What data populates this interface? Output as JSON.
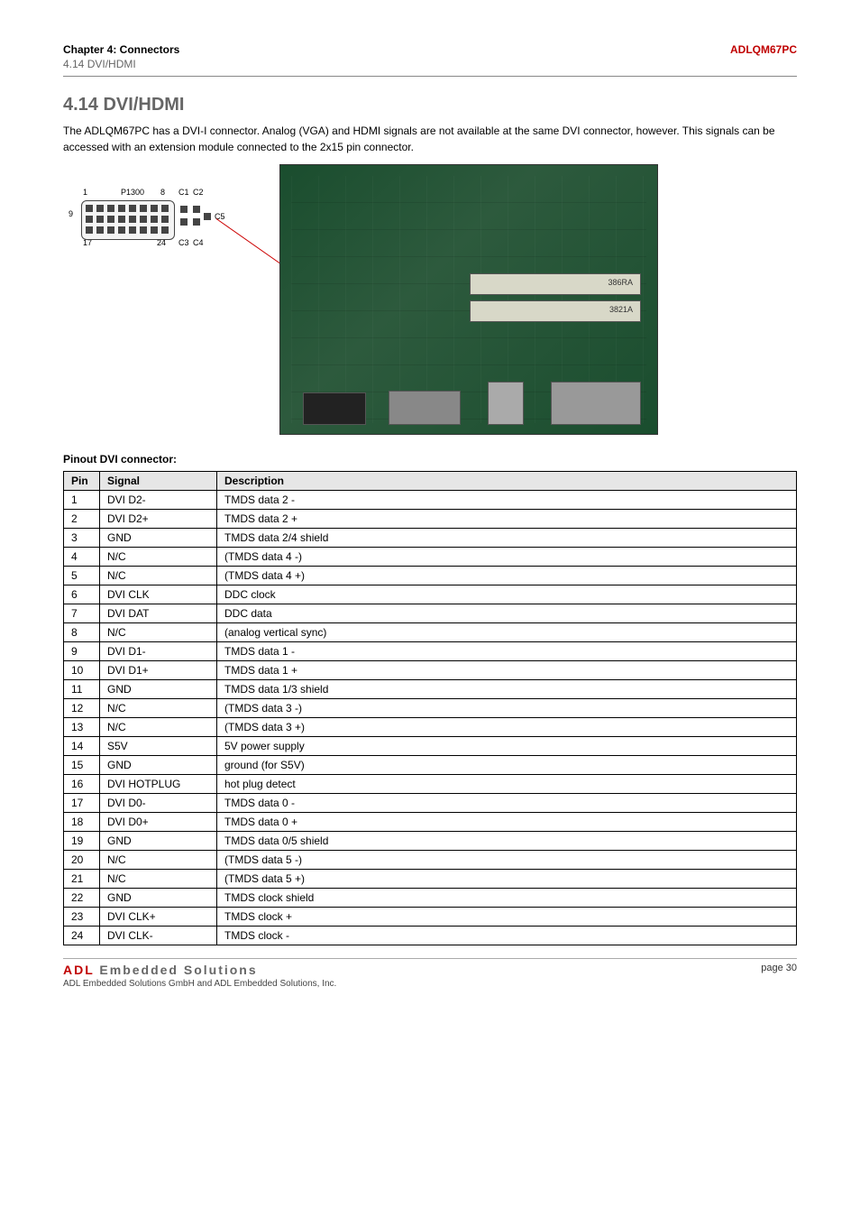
{
  "header": {
    "chapter": "Chapter 4: Connectors",
    "product": "ADLQM67PC",
    "subtitle": "4.14 DVI/HDMI"
  },
  "section": {
    "title": "4.14 DVI/HDMI",
    "body": "The ADLQM67PC has a DVI-I connector. Analog (VGA) and HDMI signals are not available at the same DVI connector, however. This signals can be accessed with an extension module connected to the 2x15 pin connector."
  },
  "diagram": {
    "connector_id": "P1300",
    "labels": {
      "p1": "1",
      "p8": "8",
      "p9": "9",
      "p17": "17",
      "p24": "24",
      "c1": "C1",
      "c2": "C2",
      "c3": "C3",
      "c4": "C4",
      "c5": "C5"
    },
    "pcb_labels": [
      "386RA",
      "3821A"
    ]
  },
  "table": {
    "caption": "Pinout DVI connector:",
    "columns": [
      "Pin",
      "Signal",
      "Description"
    ],
    "rows": [
      [
        "1",
        "DVI D2-",
        "TMDS data 2 -"
      ],
      [
        "2",
        "DVI D2+",
        "TMDS data 2 +"
      ],
      [
        "3",
        "GND",
        "TMDS data 2/4 shield"
      ],
      [
        "4",
        "N/C",
        "(TMDS data 4 -)"
      ],
      [
        "5",
        "N/C",
        "(TMDS data 4 +)"
      ],
      [
        "6",
        "DVI CLK",
        "DDC clock"
      ],
      [
        "7",
        "DVI DAT",
        "DDC data"
      ],
      [
        "8",
        "N/C",
        "(analog vertical sync)"
      ],
      [
        "9",
        "DVI D1-",
        "TMDS data 1 -"
      ],
      [
        "10",
        "DVI D1+",
        "TMDS data 1 +"
      ],
      [
        "11",
        "GND",
        "TMDS data 1/3 shield"
      ],
      [
        "12",
        "N/C",
        "(TMDS data 3 -)"
      ],
      [
        "13",
        "N/C",
        "(TMDS data 3 +)"
      ],
      [
        "14",
        "S5V",
        "5V power supply"
      ],
      [
        "15",
        "GND",
        "ground (for S5V)"
      ],
      [
        "16",
        "DVI HOTPLUG",
        "hot plug detect"
      ],
      [
        "17",
        "DVI D0-",
        "TMDS data 0 -"
      ],
      [
        "18",
        "DVI D0+",
        "TMDS data 0 +"
      ],
      [
        "19",
        "GND",
        "TMDS data 0/5 shield"
      ],
      [
        "20",
        "N/C",
        "(TMDS data 5 -)"
      ],
      [
        "21",
        "N/C",
        "(TMDS data 5 +)"
      ],
      [
        "22",
        "GND",
        "TMDS clock shield"
      ],
      [
        "23",
        "DVI CLK+",
        "TMDS clock +"
      ],
      [
        "24",
        "DVI CLK-",
        "TMDS clock -"
      ]
    ]
  },
  "footer": {
    "logo_red": "ADL",
    "logo_gray": " Embedded Solutions",
    "note": "ADL Embedded Solutions GmbH and ADL Embedded Solutions, Inc.",
    "page": "page 30"
  },
  "colors": {
    "accent_red": "#c00000",
    "header_gray": "#666666",
    "table_header_bg": "#e6e6e6",
    "pcb_green": "#1a4d2e"
  }
}
